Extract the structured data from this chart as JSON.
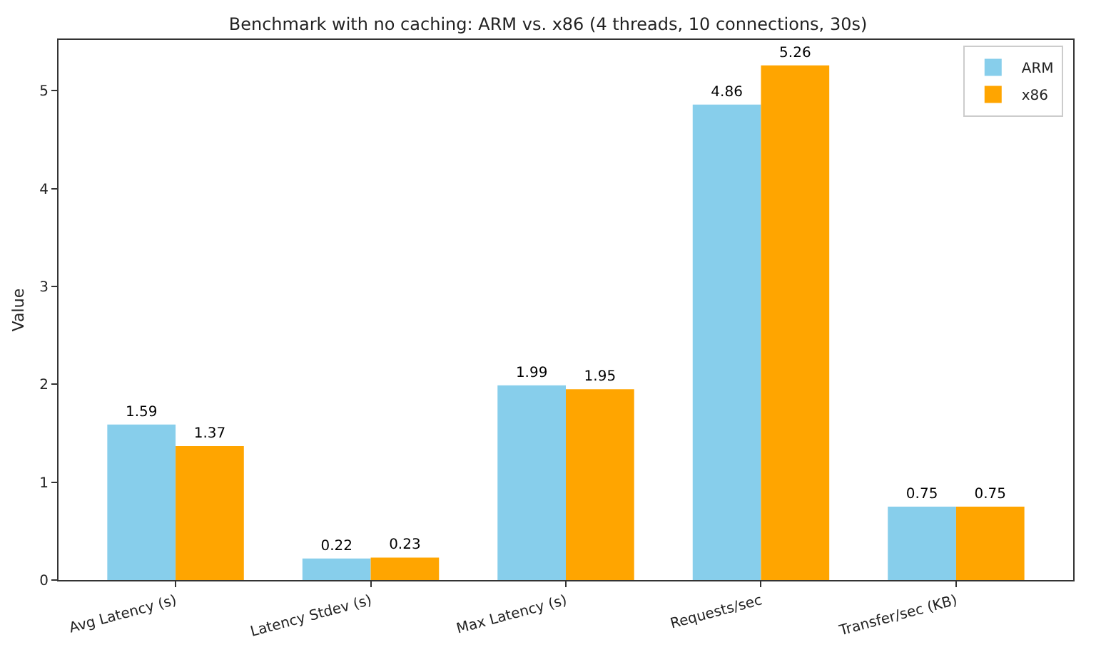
{
  "chart_data": {
    "type": "bar",
    "title": "Benchmark with no caching: ARM vs. x86 (4 threads, 10 connections, 30s)",
    "ylabel": "Value",
    "categories": [
      "Avg Latency (s)",
      "Latency Stdev (s)",
      "Max Latency (s)",
      "Requests/sec",
      "Transfer/sec (KB)"
    ],
    "series": [
      {
        "name": "ARM",
        "color": "#87ceeb",
        "values": [
          1.59,
          0.22,
          1.99,
          4.86,
          0.75
        ]
      },
      {
        "name": "x86",
        "color": "#ffa500",
        "values": [
          1.37,
          0.23,
          1.95,
          5.26,
          0.75
        ]
      }
    ],
    "ylim": [
      0,
      5.52
    ],
    "yticks": [
      0,
      1,
      2,
      3,
      4,
      5
    ],
    "data_labels": true,
    "legend": "top right"
  }
}
